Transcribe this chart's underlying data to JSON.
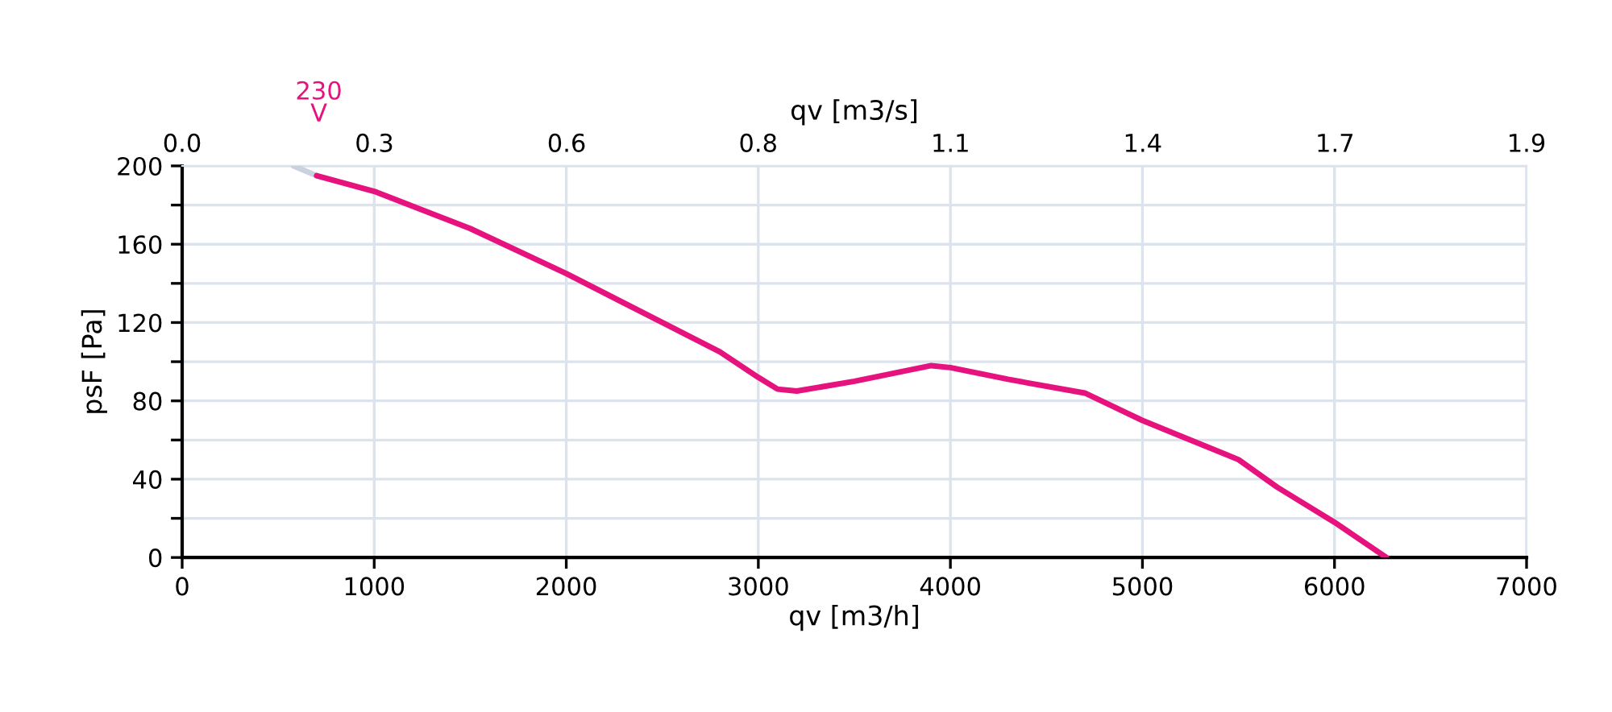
{
  "chart_data": {
    "type": "line",
    "xlabel": "qv [m3/h]",
    "ylabel": "psF [Pa]",
    "x2label": "qv [m3/s]",
    "xlim": [
      0,
      7000
    ],
    "xticks": [
      0,
      1000,
      2000,
      3000,
      4000,
      5000,
      6000,
      7000
    ],
    "ylim": [
      0,
      200
    ],
    "yticks": [
      0,
      {
        "value": 20,
        "label": null
      },
      40,
      {
        "value": 60,
        "label": null
      },
      80,
      {
        "value": 100,
        "label": null
      },
      120,
      {
        "value": 140,
        "label": null
      },
      160,
      {
        "value": 180,
        "label": null
      },
      200
    ],
    "x2lim": [
      0,
      1.944
    ],
    "x2ticks": [
      {
        "value": 0,
        "label": "0.0"
      },
      {
        "value": 0.278,
        "label": "0.3"
      },
      {
        "value": 0.556,
        "label": "0.6"
      },
      {
        "value": 0.833,
        "label": "0.8"
      },
      {
        "value": 1.111,
        "label": "1.1"
      },
      {
        "value": 1.389,
        "label": "1.4"
      },
      {
        "value": 1.667,
        "label": "1.7"
      },
      {
        "value": 1.944,
        "label": "1.9"
      }
    ],
    "grid": true,
    "marker": "none",
    "line_style": "solid",
    "series": [
      {
        "color": "#c9d2de",
        "x": [
          580,
          700
        ],
        "values": [
          200,
          195
        ]
      },
      {
        "color": "#e6127e",
        "x": [
          700,
          1000,
          1500,
          2000,
          2500,
          2800,
          3000,
          3100,
          3200,
          3500,
          3900,
          4000,
          4300,
          4700,
          5000,
          5200,
          5500,
          5700,
          6000,
          6270
        ],
        "values": [
          195,
          187,
          168,
          145,
          120,
          105,
          92,
          86,
          85,
          90,
          98,
          97,
          91,
          84,
          70,
          62,
          50,
          36,
          18,
          0
        ]
      }
    ],
    "annotations": [
      {
        "text": "230\nV",
        "x": 700,
        "y": 195
      }
    ]
  }
}
